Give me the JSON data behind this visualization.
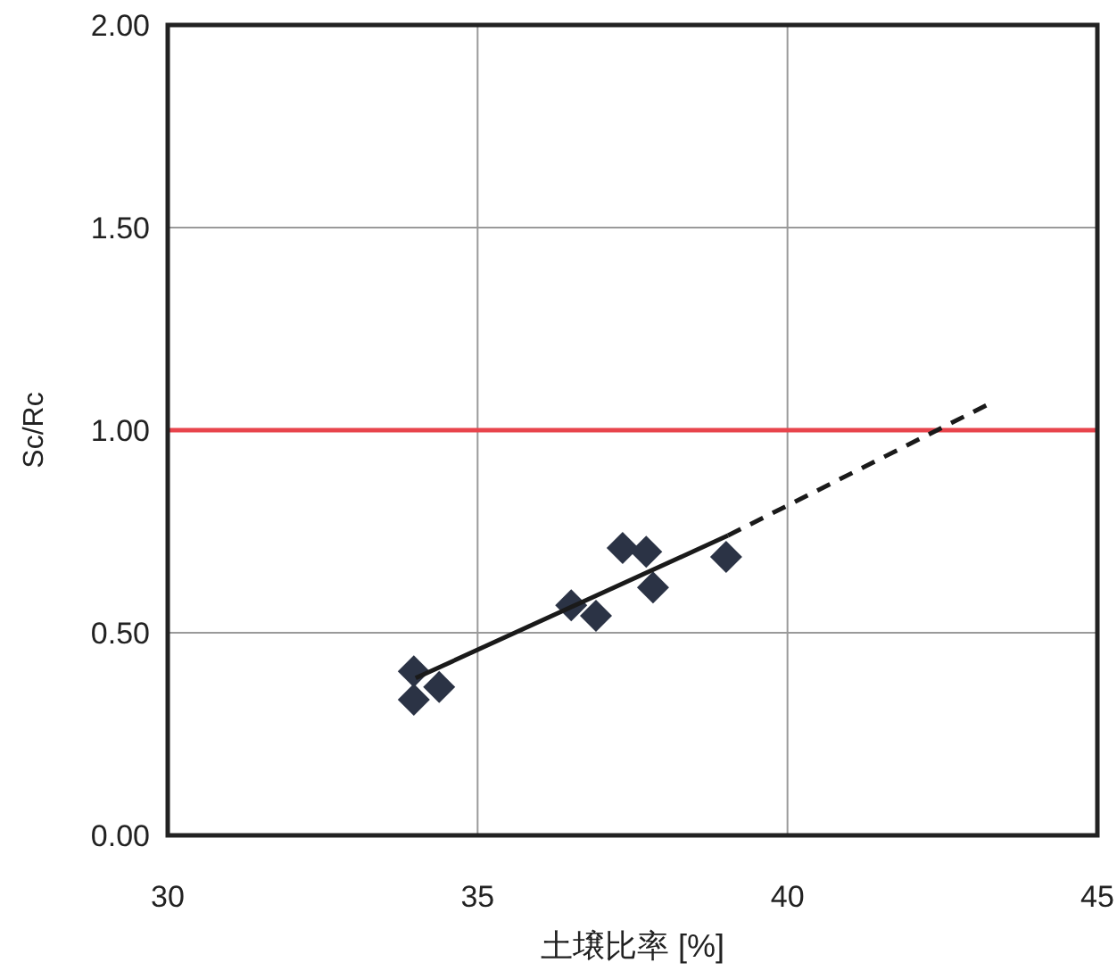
{
  "chart_data": {
    "type": "scatter",
    "xlabel": "土壌比率 [%]",
    "ylabel": "Sc/Rc",
    "xlim": [
      30,
      45
    ],
    "ylim": [
      0,
      2
    ],
    "xticks": [
      30,
      35,
      40,
      45
    ],
    "yticks": [
      {
        "value": 0,
        "label": "0.00"
      },
      {
        "value": 0.5,
        "label": "0.50"
      },
      {
        "value": 1,
        "label": "1.00"
      },
      {
        "value": 1.5,
        "label": "1.50"
      },
      {
        "value": 2,
        "label": "2.00"
      }
    ],
    "grid": true,
    "ref_lines": [
      {
        "axis": "y",
        "value": 1,
        "color": "#e8444c"
      }
    ],
    "series": [
      {
        "type": "scatter",
        "marker": "diamond",
        "color": "#2b3345",
        "x": [
          33.97,
          33.97,
          34.38,
          36.51,
          36.91,
          37.34,
          37.72,
          37.83,
          39.01
        ],
        "values": [
          0.405,
          0.335,
          0.366,
          0.568,
          0.542,
          0.709,
          0.7,
          0.612,
          0.687
        ]
      },
      {
        "type": "line",
        "line_style": "solid",
        "color": "#1a1a1a",
        "x": [
          34.0,
          39.04
        ],
        "values": [
          0.388,
          0.74
        ]
      },
      {
        "type": "line",
        "line_style": "dashed",
        "color": "#1a1a1a",
        "x": [
          39.04,
          43.27
        ],
        "values": [
          0.74,
          1.066
        ]
      }
    ]
  }
}
